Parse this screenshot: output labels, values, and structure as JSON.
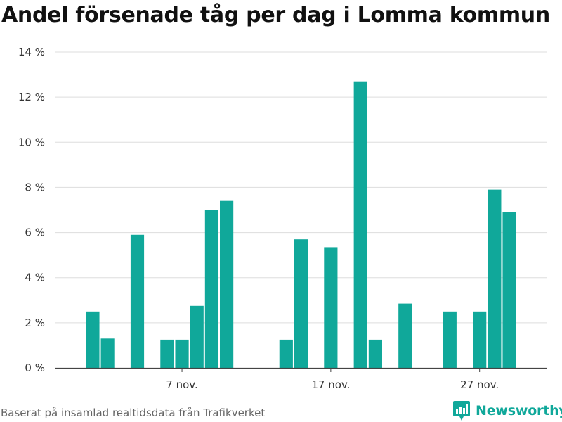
{
  "title": "Andel försenade tåg per dag i Lomma kommun",
  "source": "Baserat på insamlad realtidsdata från Trafikverket",
  "brand": {
    "name": "Newsworthy",
    "icon": "newsworthy-logo-icon"
  },
  "colors": {
    "bar": "#10a89a",
    "brand": "#10a89a",
    "grid": "#dddddd",
    "axis": "#444444"
  },
  "chart_data": {
    "type": "bar",
    "title": "Andel försenade tåg per dag i Lomma kommun",
    "xlabel": "",
    "ylabel": "",
    "y_unit": "%",
    "ylim": [
      0,
      14
    ],
    "yticks": [
      0,
      2,
      4,
      6,
      8,
      10,
      12,
      14
    ],
    "ytick_labels": [
      "0 %",
      "2 %",
      "4 %",
      "6 %",
      "8 %",
      "10 %",
      "12 %",
      "14 %"
    ],
    "x_domain": [
      -1.5,
      31.5
    ],
    "xticks": [
      {
        "day": 7,
        "label": "7 nov."
      },
      {
        "day": 17,
        "label": "17 nov."
      },
      {
        "day": 27,
        "label": "27 nov."
      }
    ],
    "grid": true,
    "series": [
      {
        "days": [
          1,
          2,
          4,
          6,
          7,
          8,
          9,
          10,
          14,
          15,
          17,
          19,
          20,
          22,
          25,
          27,
          28,
          29
        ],
        "values": [
          2.5,
          1.3,
          5.9,
          1.25,
          1.25,
          2.75,
          7.0,
          7.4,
          1.25,
          5.7,
          5.35,
          12.7,
          1.25,
          2.85,
          2.5,
          2.5,
          7.9,
          6.9
        ]
      }
    ]
  }
}
